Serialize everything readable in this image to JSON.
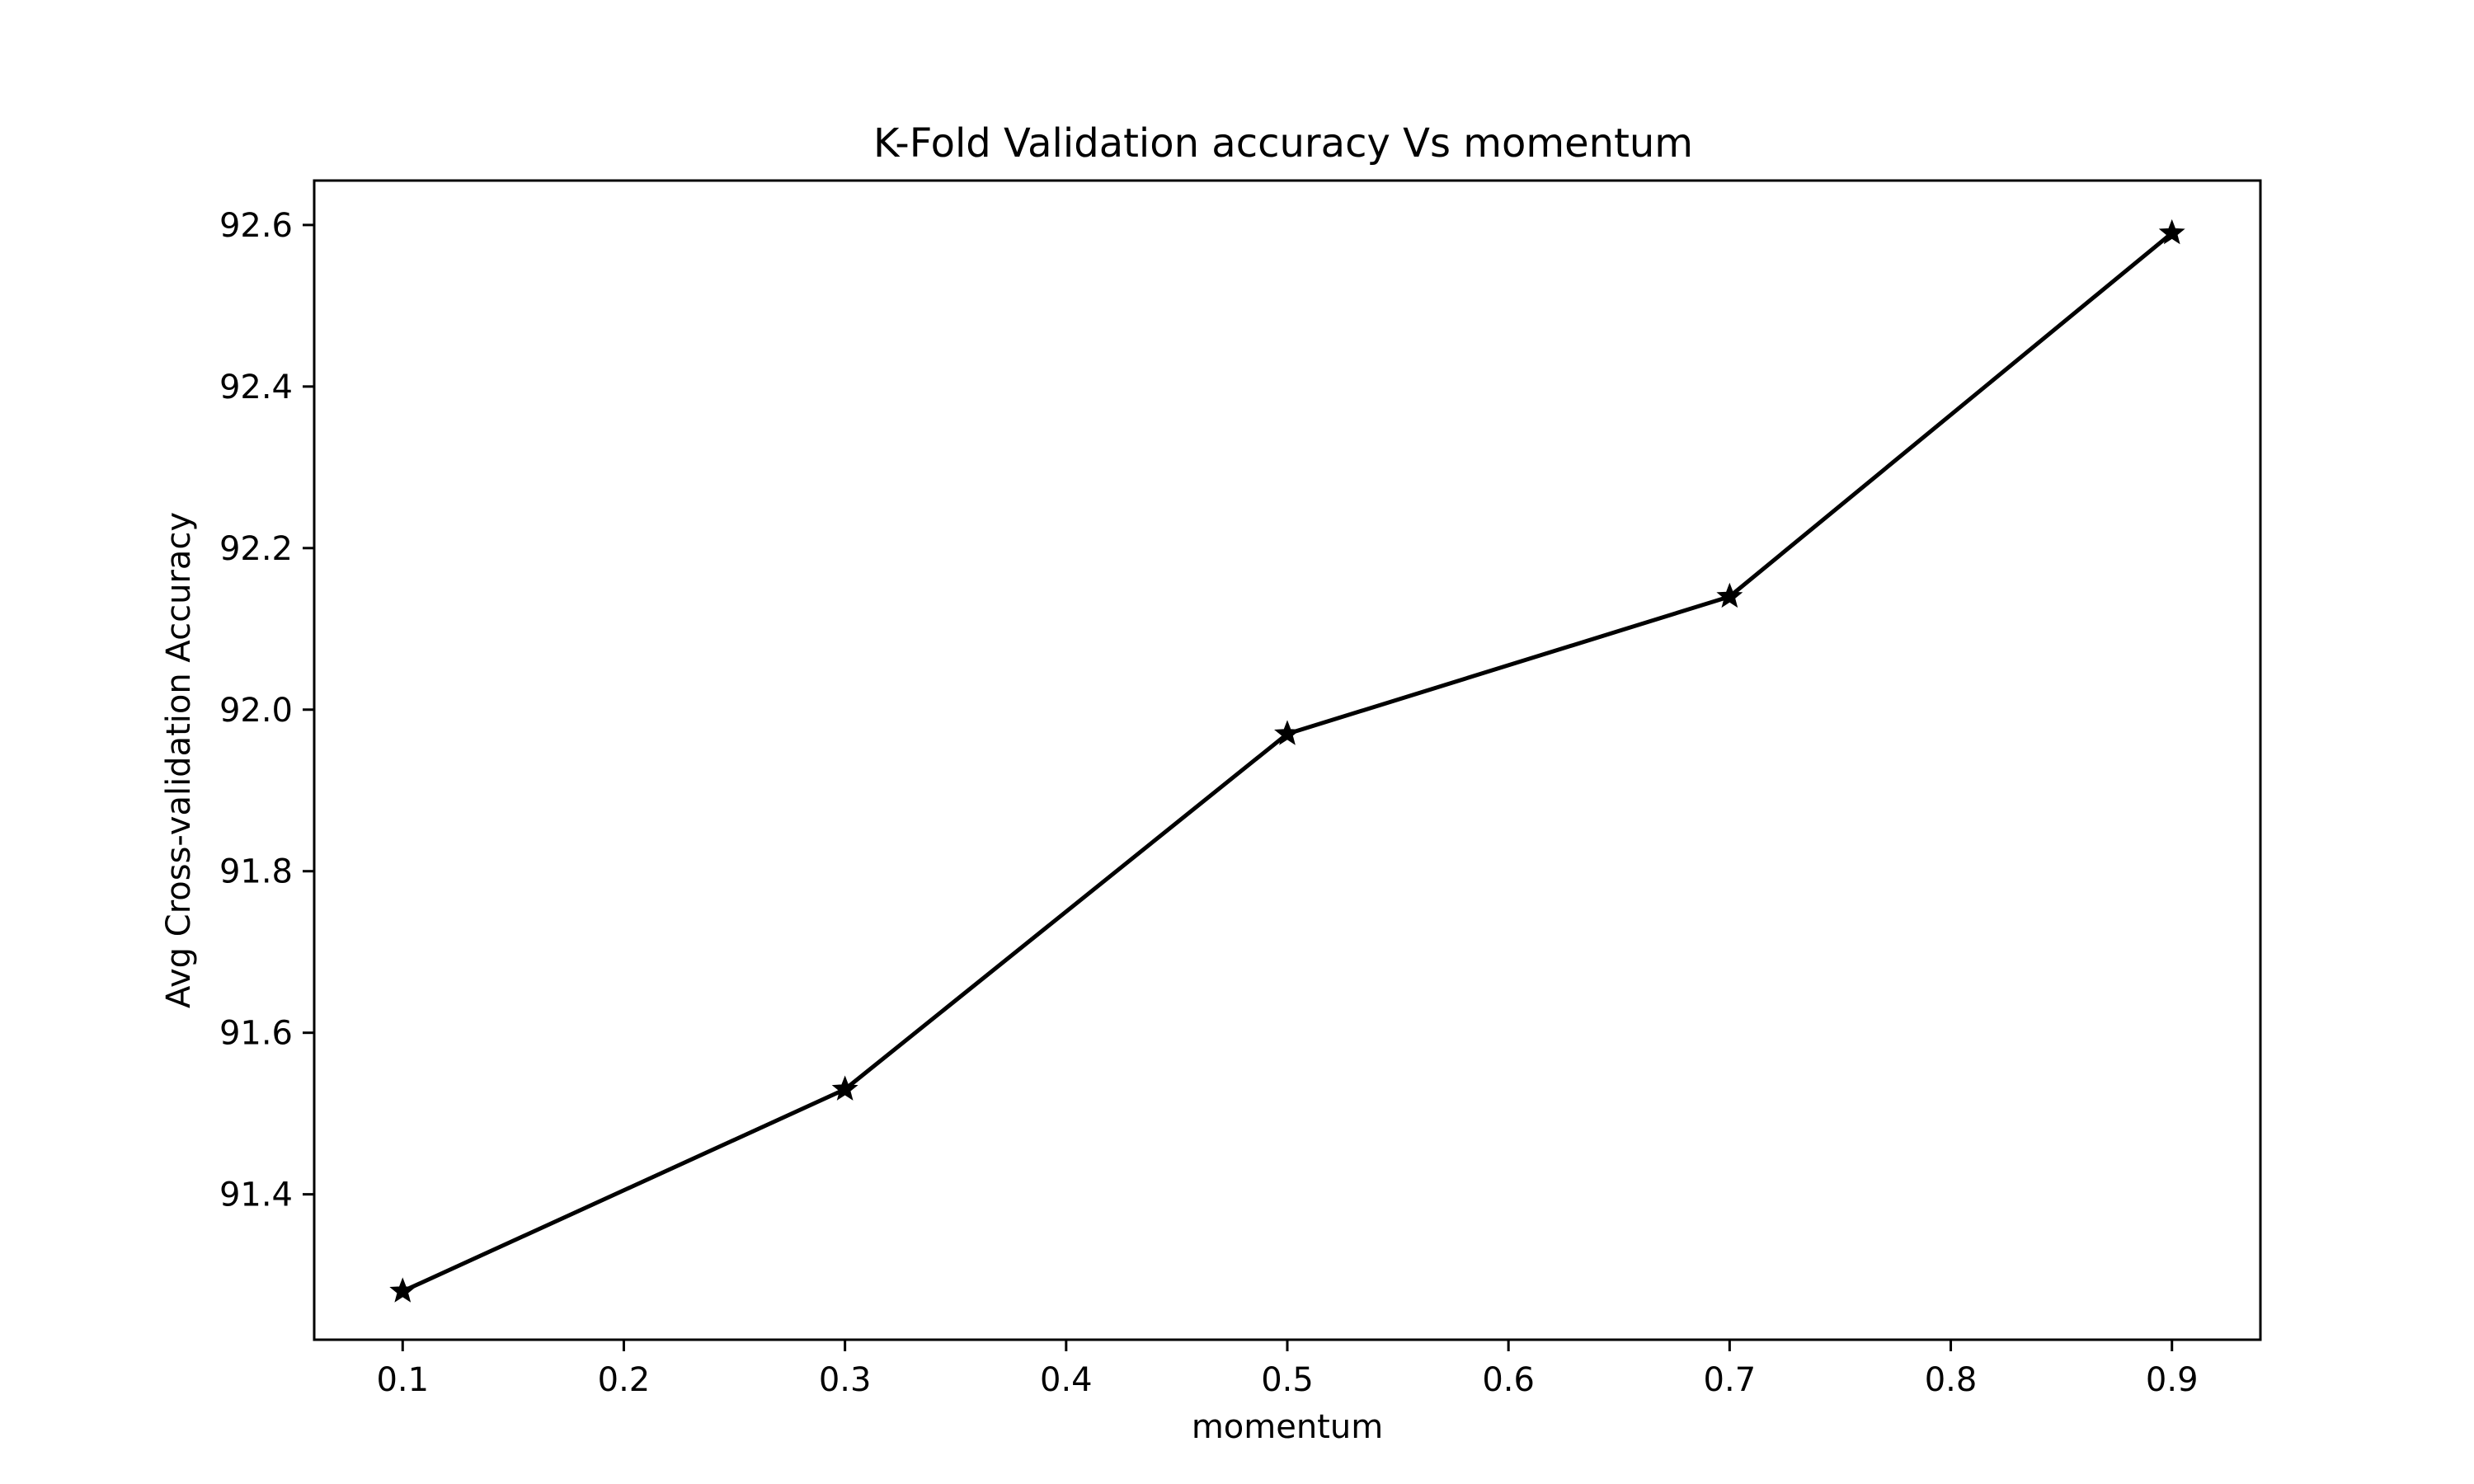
{
  "chart_data": {
    "type": "line",
    "title": "K-Fold Validation accuracy Vs momentum",
    "xlabel": "momentum",
    "ylabel": "Avg Cross-validation Accuracy",
    "xlim": [
      0.06,
      0.94
    ],
    "ylim": [
      91.22,
      92.655
    ],
    "xticks": [
      0.1,
      0.2,
      0.3,
      0.4,
      0.5,
      0.6,
      0.7,
      0.8,
      0.9
    ],
    "yticks": [
      91.4,
      91.6,
      91.8,
      92.0,
      92.2,
      92.4,
      92.6
    ],
    "grid": false,
    "series": [
      {
        "color": "#000000",
        "marker": "star",
        "x": [
          0.1,
          0.3,
          0.5,
          0.7,
          0.9
        ],
        "y": [
          91.28,
          91.53,
          91.97,
          92.14,
          92.59
        ]
      }
    ]
  }
}
